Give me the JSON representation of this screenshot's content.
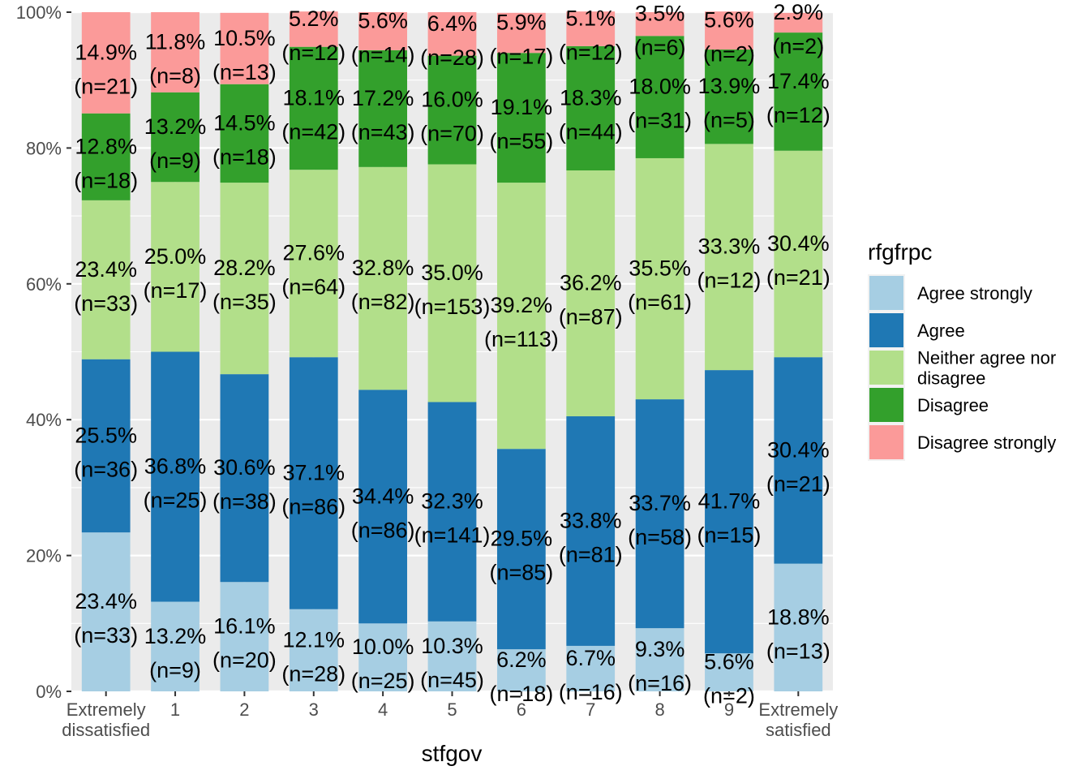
{
  "chart_data": {
    "type": "bar",
    "stacked": true,
    "normalized": true,
    "xlabel": "stfgov",
    "ylabel": "",
    "ylim": [
      0,
      1
    ],
    "y_ticks": [
      "0%",
      "20%",
      "40%",
      "60%",
      "80%",
      "100%"
    ],
    "categories": [
      {
        "lines": [
          "Extremely",
          "dissatisfied"
        ]
      },
      {
        "lines": [
          "1"
        ]
      },
      {
        "lines": [
          "2"
        ]
      },
      {
        "lines": [
          "3"
        ]
      },
      {
        "lines": [
          "4"
        ]
      },
      {
        "lines": [
          "5"
        ]
      },
      {
        "lines": [
          "6"
        ]
      },
      {
        "lines": [
          "7"
        ]
      },
      {
        "lines": [
          "8"
        ]
      },
      {
        "lines": [
          "9"
        ]
      },
      {
        "lines": [
          "Extremely",
          "satisfied"
        ]
      }
    ],
    "legend": {
      "title": "rfgfrpc",
      "placement": "right"
    },
    "series": [
      {
        "name": "Agree strongly",
        "color": "#a6cee3",
        "values": [
          0.234,
          0.132,
          0.161,
          0.121,
          0.1,
          0.103,
          0.062,
          0.067,
          0.093,
          0.056,
          0.188
        ],
        "labels": [
          "23.4%",
          "13.2%",
          "16.1%",
          "12.1%",
          "10.0%",
          "10.3%",
          "6.2%",
          "6.7%",
          "9.3%",
          "5.6%",
          "18.8%"
        ],
        "counts": [
          "(n=33)",
          "(n=9)",
          "(n=20)",
          "(n=28)",
          "(n=25)",
          "(n=45)",
          "(n=18)",
          "(n=16)",
          "(n=16)",
          "(n=2)",
          "(n=13)"
        ]
      },
      {
        "name": "Agree",
        "color": "#1f78b4",
        "values": [
          0.255,
          0.368,
          0.306,
          0.371,
          0.344,
          0.323,
          0.295,
          0.338,
          0.337,
          0.417,
          0.304
        ],
        "labels": [
          "25.5%",
          "36.8%",
          "30.6%",
          "37.1%",
          "34.4%",
          "32.3%",
          "29.5%",
          "33.8%",
          "33.7%",
          "41.7%",
          "30.4%"
        ],
        "counts": [
          "(n=36)",
          "(n=25)",
          "(n=38)",
          "(n=86)",
          "(n=86)",
          "(n=141)",
          "(n=85)",
          "(n=81)",
          "(n=58)",
          "(n=15)",
          "(n=21)"
        ]
      },
      {
        "name": "Neither agree nor disagree",
        "legend_lines": [
          "Neither agree nor",
          "disagree"
        ],
        "color": "#b2df8a",
        "values": [
          0.234,
          0.25,
          0.282,
          0.276,
          0.328,
          0.35,
          0.392,
          0.362,
          0.355,
          0.333,
          0.304
        ],
        "labels": [
          "23.4%",
          "25.0%",
          "28.2%",
          "27.6%",
          "32.8%",
          "35.0%",
          "39.2%",
          "36.2%",
          "35.5%",
          "33.3%",
          "30.4%"
        ],
        "counts": [
          "(n=33)",
          "(n=17)",
          "(n=35)",
          "(n=64)",
          "(n=82)",
          "(n=153)",
          "(n=113)",
          "(n=87)",
          "(n=61)",
          "(n=12)",
          "(n=21)"
        ]
      },
      {
        "name": "Disagree",
        "color": "#33a02c",
        "values": [
          0.128,
          0.132,
          0.145,
          0.181,
          0.172,
          0.16,
          0.191,
          0.183,
          0.18,
          0.139,
          0.174
        ],
        "labels": [
          "12.8%",
          "13.2%",
          "14.5%",
          "18.1%",
          "17.2%",
          "16.0%",
          "19.1%",
          "18.3%",
          "18.0%",
          "13.9%",
          "17.4%"
        ],
        "counts": [
          "(n=18)",
          "(n=9)",
          "(n=18)",
          "(n=42)",
          "(n=43)",
          "(n=70)",
          "(n=55)",
          "(n=44)",
          "(n=31)",
          "(n=5)",
          "(n=12)"
        ]
      },
      {
        "name": "Disagree strongly",
        "color": "#fb9a99",
        "values": [
          0.149,
          0.118,
          0.105,
          0.052,
          0.056,
          0.064,
          0.059,
          0.051,
          0.035,
          0.056,
          0.029
        ],
        "labels": [
          "14.9%",
          "11.8%",
          "10.5%",
          "5.2%",
          "5.6%",
          "6.4%",
          "5.9%",
          "5.1%",
          "3.5%",
          "5.6%",
          "2.9%"
        ],
        "counts": [
          "(n=21)",
          "(n=8)",
          "(n=13)",
          "(n=12)",
          "(n=14)",
          "(n=28)",
          "(n=17)",
          "(n=12)",
          "(n=6)",
          "(n=2)",
          "(n=2)"
        ]
      }
    ]
  }
}
